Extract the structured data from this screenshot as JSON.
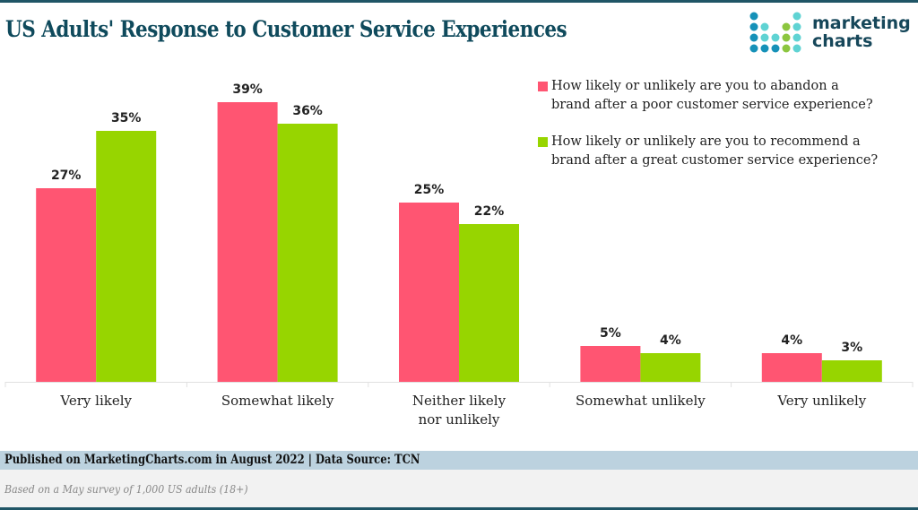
{
  "header": {
    "title": "US Adults' Response to Customer Service Experiences",
    "logo_line1": "marketing",
    "logo_line2": "charts"
  },
  "colors": {
    "series_abandon": "#ff5572",
    "series_recommend": "#97d500",
    "title": "#0f4a5c",
    "footer_band": "#bcd2df",
    "accent_bar": "#1f5566"
  },
  "chart_data": {
    "type": "bar",
    "title": "US Adults' Response to Customer Service Experiences",
    "xlabel": "",
    "ylabel": "",
    "ylim": [
      0,
      40
    ],
    "grid": false,
    "legend_position": "top-right",
    "categories": [
      "Very likely",
      "Somewhat likely",
      "Neither likely nor unlikely",
      "Somewhat unlikely",
      "Very unlikely"
    ],
    "category_label_lines": [
      [
        "Very likely"
      ],
      [
        "Somewhat likely"
      ],
      [
        "Neither likely",
        "nor unlikely"
      ],
      [
        "Somewhat unlikely"
      ],
      [
        "Very unlikely"
      ]
    ],
    "series": [
      {
        "name": "How likely or unlikely are you to abandon a brand after a poor customer service experience?",
        "legend_lines": [
          "How likely or unlikely are you to abandon a",
          "brand after a poor customer service experience?"
        ],
        "color": "#ff5572",
        "values": [
          27,
          39,
          25,
          5,
          4
        ],
        "labels": [
          "27%",
          "39%",
          "25%",
          "5%",
          "4%"
        ]
      },
      {
        "name": "How likely or unlikely are you to recommend a brand after a great customer service experience?",
        "legend_lines": [
          "How likely or unlikely are you to recommend a",
          "brand after a great customer service experience?"
        ],
        "color": "#97d500",
        "values": [
          35,
          36,
          22,
          4,
          3
        ],
        "labels": [
          "35%",
          "36%",
          "22%",
          "4%",
          "3%"
        ]
      }
    ]
  },
  "footer": {
    "published": "Published on MarketingCharts.com in August 2022 | Data Source: TCN",
    "note": "Based on a May survey of 1,000 US adults (18+)"
  }
}
